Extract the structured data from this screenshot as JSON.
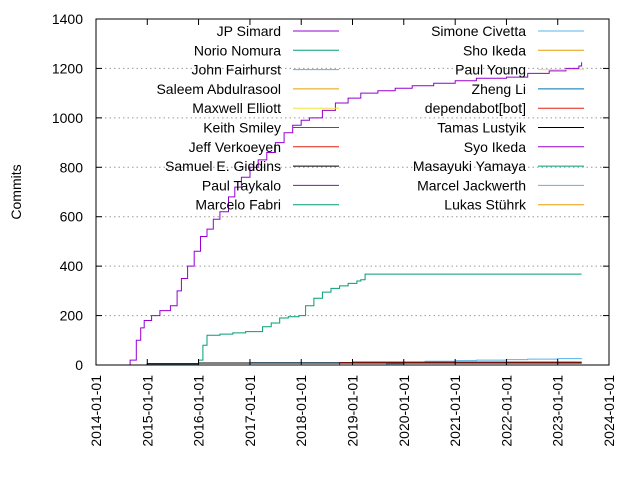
{
  "chart_data": {
    "type": "line",
    "ylabel": "Commits",
    "xlabel": "",
    "ylim": [
      0,
      1400
    ],
    "yticks": [
      0,
      200,
      400,
      600,
      800,
      1000,
      1200,
      1400
    ],
    "xlim": [
      "2014-01-01",
      "2024-01-01"
    ],
    "xticks": [
      "2014-01-01",
      "2015-01-01",
      "2016-01-01",
      "2017-01-01",
      "2018-01-01",
      "2019-01-01",
      "2020-01-01",
      "2021-01-01",
      "2022-01-01",
      "2023-01-01",
      "2024-01-01"
    ],
    "grid": "horizontal dotted",
    "legend_placement": "top, two columns",
    "series": [
      {
        "name": "JP Simard",
        "color": "#9400d3",
        "points": [
          [
            "2014-01-01",
            0
          ],
          [
            "2014-07-10",
            0
          ],
          [
            "2014-09-01",
            20
          ],
          [
            "2014-10-15",
            100
          ],
          [
            "2014-11-15",
            150
          ],
          [
            "2014-12-10",
            180
          ],
          [
            "2015-02-01",
            200
          ],
          [
            "2015-04-01",
            220
          ],
          [
            "2015-06-15",
            240
          ],
          [
            "2015-08-01",
            300
          ],
          [
            "2015-09-01",
            350
          ],
          [
            "2015-10-15",
            400
          ],
          [
            "2015-12-01",
            460
          ],
          [
            "2016-01-15",
            520
          ],
          [
            "2016-03-01",
            550
          ],
          [
            "2016-04-15",
            590
          ],
          [
            "2016-06-01",
            620
          ],
          [
            "2016-08-01",
            680
          ],
          [
            "2016-09-15",
            720
          ],
          [
            "2016-11-01",
            760
          ],
          [
            "2017-01-01",
            800
          ],
          [
            "2017-03-01",
            830
          ],
          [
            "2017-05-01",
            860
          ],
          [
            "2017-07-01",
            900
          ],
          [
            "2017-09-01",
            940
          ],
          [
            "2017-11-01",
            970
          ],
          [
            "2018-01-01",
            990
          ],
          [
            "2018-03-01",
            1000
          ],
          [
            "2018-06-01",
            1030
          ],
          [
            "2018-09-01",
            1060
          ],
          [
            "2018-12-01",
            1080
          ],
          [
            "2019-03-01",
            1100
          ],
          [
            "2019-07-01",
            1110
          ],
          [
            "2019-11-01",
            1120
          ],
          [
            "2020-03-01",
            1130
          ],
          [
            "2020-08-01",
            1140
          ],
          [
            "2021-01-01",
            1150
          ],
          [
            "2021-06-01",
            1160
          ],
          [
            "2022-01-01",
            1165
          ],
          [
            "2022-06-01",
            1180
          ],
          [
            "2022-11-01",
            1190
          ],
          [
            "2023-03-01",
            1200
          ],
          [
            "2023-06-01",
            1210
          ],
          [
            "2023-06-20",
            1225
          ]
        ]
      },
      {
        "name": "Norio Nomura",
        "color": "#009e73",
        "points": [
          [
            "2014-01-01",
            0
          ],
          [
            "2015-12-01",
            0
          ],
          [
            "2016-01-01",
            20
          ],
          [
            "2016-02-01",
            80
          ],
          [
            "2016-03-01",
            120
          ],
          [
            "2016-06-01",
            125
          ],
          [
            "2016-09-01",
            130
          ],
          [
            "2016-12-01",
            135
          ],
          [
            "2017-04-01",
            155
          ],
          [
            "2017-06-01",
            170
          ],
          [
            "2017-08-01",
            190
          ],
          [
            "2017-10-01",
            195
          ],
          [
            "2017-12-15",
            200
          ],
          [
            "2018-02-01",
            240
          ],
          [
            "2018-04-01",
            270
          ],
          [
            "2018-06-01",
            295
          ],
          [
            "2018-08-01",
            310
          ],
          [
            "2018-10-01",
            320
          ],
          [
            "2018-12-01",
            330
          ],
          [
            "2019-02-01",
            340
          ],
          [
            "2019-03-01",
            345
          ],
          [
            "2019-04-01",
            368
          ],
          [
            "2020-01-01",
            368
          ],
          [
            "2021-01-01",
            368
          ],
          [
            "2022-01-01",
            368
          ],
          [
            "2023-06-20",
            368
          ]
        ]
      },
      {
        "name": "John Fairhurst",
        "color": "#56b4e9",
        "points": [
          [
            "2014-01-01",
            0
          ],
          [
            "2019-06-01",
            0
          ],
          [
            "2019-09-01",
            5
          ],
          [
            "2020-01-01",
            10
          ],
          [
            "2020-06-01",
            15
          ],
          [
            "2021-01-01",
            18
          ],
          [
            "2021-06-01",
            20
          ],
          [
            "2022-01-01",
            22
          ],
          [
            "2022-06-01",
            24
          ],
          [
            "2023-01-01",
            26
          ],
          [
            "2023-06-20",
            28
          ]
        ]
      },
      {
        "name": "Saleem Abdulrasool",
        "color": "#e69f00",
        "points": [
          [
            "2014-01-01",
            0
          ],
          [
            "2023-06-20",
            0
          ]
        ]
      },
      {
        "name": "Maxwell Elliott",
        "color": "#f0e442",
        "points": [
          [
            "2014-01-01",
            0
          ],
          [
            "2023-06-20",
            0
          ]
        ]
      },
      {
        "name": "Keith Smiley",
        "color": "#0072b2",
        "points": [
          [
            "2014-01-01",
            0
          ],
          [
            "2014-10-01",
            0
          ],
          [
            "2015-01-01",
            5
          ],
          [
            "2016-01-01",
            8
          ],
          [
            "2017-01-01",
            9
          ],
          [
            "2023-06-20",
            10
          ]
        ]
      },
      {
        "name": "Jeff Verkoeyen",
        "color": "#e51e10",
        "points": [
          [
            "2014-01-01",
            0
          ],
          [
            "2018-08-01",
            0
          ],
          [
            "2018-10-01",
            10
          ],
          [
            "2019-01-01",
            12
          ],
          [
            "2023-06-20",
            12
          ]
        ]
      },
      {
        "name": "Samuel E. Giddins",
        "color": "#000000",
        "points": [
          [
            "2014-01-01",
            0
          ],
          [
            "2014-11-01",
            0
          ],
          [
            "2015-01-01",
            5
          ],
          [
            "2016-01-01",
            8
          ],
          [
            "2023-06-20",
            8
          ]
        ]
      },
      {
        "name": "Paul Taykalo",
        "color": "#9400d3",
        "points": [
          [
            "2014-01-01",
            0
          ],
          [
            "2023-06-20",
            0
          ]
        ]
      },
      {
        "name": "Marcelo Fabri",
        "color": "#009e73",
        "points": [
          [
            "2014-01-01",
            0
          ],
          [
            "2023-06-20",
            0
          ]
        ]
      },
      {
        "name": "Simone Civetta",
        "color": "#56b4e9",
        "points": [
          [
            "2014-01-01",
            0
          ],
          [
            "2023-06-20",
            0
          ]
        ]
      },
      {
        "name": "Sho Ikeda",
        "color": "#e69f00",
        "points": [
          [
            "2014-01-01",
            0
          ],
          [
            "2023-06-20",
            0
          ]
        ]
      },
      {
        "name": "Paul Young",
        "color": "#f0e442",
        "points": [
          [
            "2014-01-01",
            0
          ],
          [
            "2023-06-20",
            0
          ]
        ]
      },
      {
        "name": "Zheng Li",
        "color": "#0072b2",
        "points": [
          [
            "2014-01-01",
            0
          ],
          [
            "2023-06-20",
            0
          ]
        ]
      },
      {
        "name": "dependabot[bot]",
        "color": "#e51e10",
        "points": [
          [
            "2014-01-01",
            0
          ],
          [
            "2023-06-20",
            0
          ]
        ]
      },
      {
        "name": "Tamas Lustyik",
        "color": "#000000",
        "points": [
          [
            "2014-01-01",
            0
          ],
          [
            "2023-06-20",
            0
          ]
        ]
      },
      {
        "name": "Syo Ikeda",
        "color": "#9400d3",
        "points": [
          [
            "2014-01-01",
            0
          ],
          [
            "2023-06-20",
            0
          ]
        ]
      },
      {
        "name": "Masayuki Yamaya",
        "color": "#009e73",
        "points": [
          [
            "2014-01-01",
            0
          ],
          [
            "2023-06-20",
            0
          ]
        ]
      },
      {
        "name": "Marcel Jackwerth",
        "color": "#56b4e9",
        "points": [
          [
            "2014-01-01",
            0
          ],
          [
            "2023-06-20",
            0
          ]
        ]
      },
      {
        "name": "Lukas Stührk",
        "color": "#e69f00",
        "points": [
          [
            "2014-01-01",
            0
          ],
          [
            "2023-06-20",
            0
          ]
        ]
      }
    ]
  }
}
